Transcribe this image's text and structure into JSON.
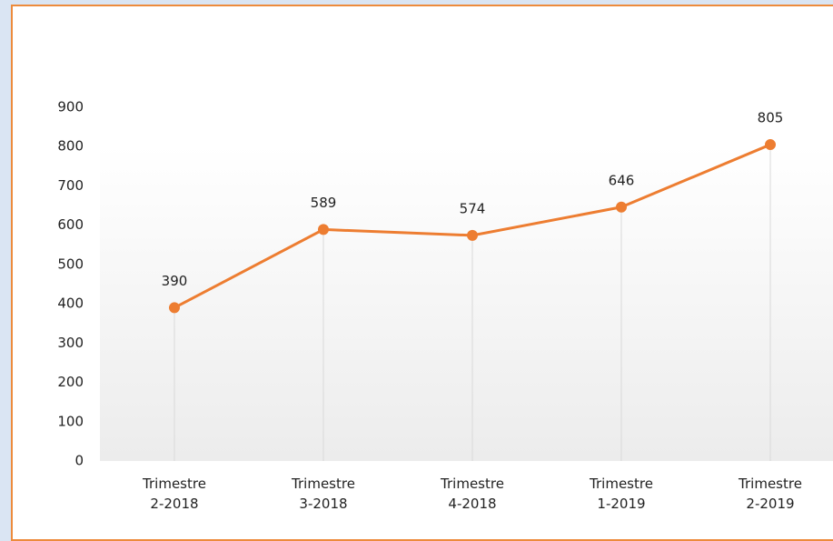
{
  "chart_data": {
    "type": "line",
    "categories": [
      "Trimestre 2-2018",
      "Trimestre 3-2018",
      "Trimestre 4-2018",
      "Trimestre 1-2019",
      "Trimestre 2-2019"
    ],
    "values": [
      390,
      589,
      574,
      646,
      805
    ],
    "color": "#ed7d31",
    "ylim": [
      0,
      900
    ],
    "yticks": [
      0,
      100,
      200,
      300,
      400,
      500,
      600,
      700,
      800,
      900
    ],
    "grid": false
  }
}
